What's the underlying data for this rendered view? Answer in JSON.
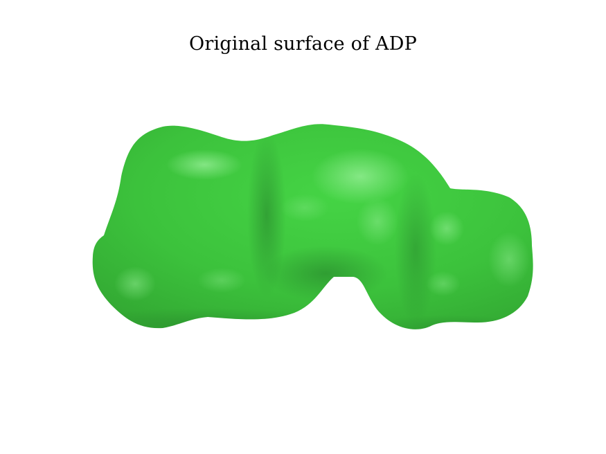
{
  "figure": {
    "title": "Original surface of ADP"
  },
  "surface": {
    "color": "#3cc43c",
    "highlight_color": "#8ee88e",
    "shadow_color": "#2f8f35"
  }
}
